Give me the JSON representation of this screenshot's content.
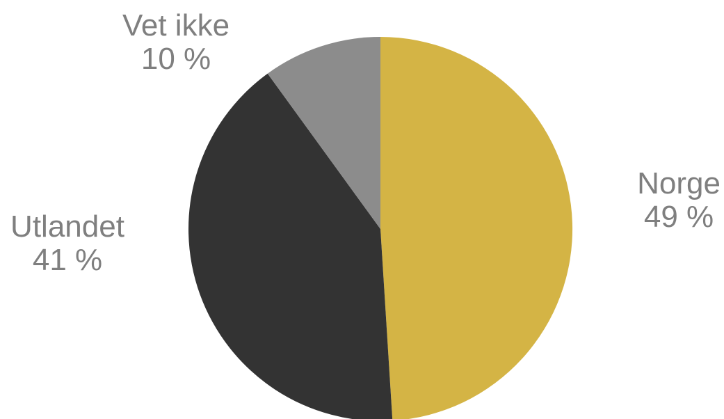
{
  "chart_data": {
    "type": "pie",
    "title": "",
    "slices": [
      {
        "label": "Norge",
        "value": 49,
        "value_label": "49 %",
        "color": "#D4B445"
      },
      {
        "label": "Utlandet",
        "value": 41,
        "value_label": "41 %",
        "color": "#333333"
      },
      {
        "label": "Vet ikke",
        "value": 10,
        "value_label": "10 %",
        "color": "#8C8C8C"
      }
    ],
    "start_angle": "12 o'clock",
    "direction": "clockwise",
    "legend": "none",
    "label_color": "#7F7F7F"
  }
}
